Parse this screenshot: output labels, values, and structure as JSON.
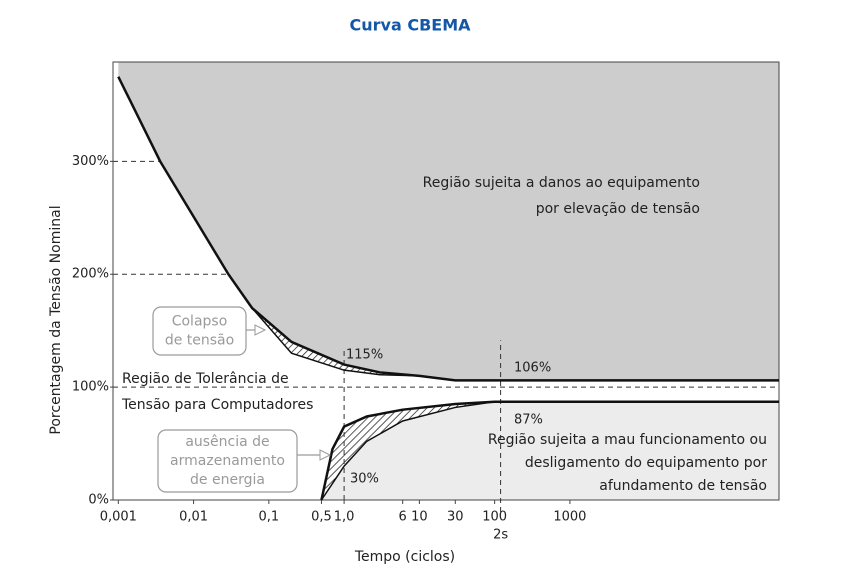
{
  "chart_data": {
    "type": "line",
    "title": "Curva CBEMA",
    "x_label": "Tempo (ciclos)",
    "y_label": "Porcentagem da Tensão Nominal",
    "log_x": true,
    "xlim": [
      0.00085,
      600000
    ],
    "ylim": [
      0,
      388
    ],
    "xticks": [
      {
        "value": 0.001,
        "label": "0,001"
      },
      {
        "value": 0.01,
        "label": "0,01"
      },
      {
        "value": 0.1,
        "label": "0,1"
      },
      {
        "value": 0.5,
        "label": "0,5"
      },
      {
        "value": 1,
        "label": "1,0"
      },
      6,
      10,
      30,
      100,
      1000
    ],
    "yticks": [
      {
        "value": 0,
        "label": "0%"
      },
      {
        "value": 100,
        "label": "100%"
      },
      {
        "value": 200,
        "label": "200%"
      },
      {
        "value": 300,
        "label": "300%"
      }
    ],
    "upper_fill": "#cdcdcd",
    "lower_fill": "#ececec",
    "series": [
      {
        "color": "#111111",
        "width": 2.5,
        "x": [
          0.001,
          0.0036,
          0.029,
          0.06,
          0.2,
          1,
          3,
          10,
          30,
          600000
        ],
        "values": [
          375,
          300,
          200,
          170,
          140,
          120,
          113,
          110,
          106,
          106
        ]
      },
      {
        "color": "#111111",
        "width": 1.5,
        "x": [
          0.06,
          0.2,
          1,
          3,
          10
        ],
        "values": [
          170,
          130,
          115,
          111,
          110
        ]
      },
      {
        "color": "#111111",
        "width": 2.5,
        "x": [
          0.5,
          0.7,
          1,
          2,
          6,
          30,
          100,
          600000
        ],
        "values": [
          0,
          45,
          65,
          74,
          80,
          85,
          87,
          87
        ]
      },
      {
        "color": "#111111",
        "width": 1.5,
        "x": [
          0.5,
          1,
          2,
          6,
          30,
          100
        ],
        "values": [
          0,
          30,
          52,
          70,
          82,
          87
        ]
      }
    ],
    "marker": {
      "x": 120,
      "label": "2s"
    },
    "annotations": [
      {
        "lines": [
          "Região sujeita a danos ao equipamento",
          "por elevação de tensão"
        ]
      },
      {
        "lines": [
          "Região de Tolerância de",
          "Tensão para Computadores"
        ]
      },
      {
        "lines": [
          "Região sujeita a mau funcionamento ou",
          "desligamento  do equipamento por",
          "afundamento de tensão"
        ]
      },
      {
        "lines": [
          "115%"
        ]
      },
      {
        "lines": [
          "106%"
        ]
      },
      {
        "lines": [
          "87%"
        ]
      },
      {
        "lines": [
          "30%"
        ]
      }
    ],
    "callouts": [
      {
        "lines": [
          "Colapso",
          "de tensão"
        ]
      },
      {
        "lines": [
          "ausência de",
          "armazenamento",
          "de energia"
        ]
      }
    ]
  }
}
